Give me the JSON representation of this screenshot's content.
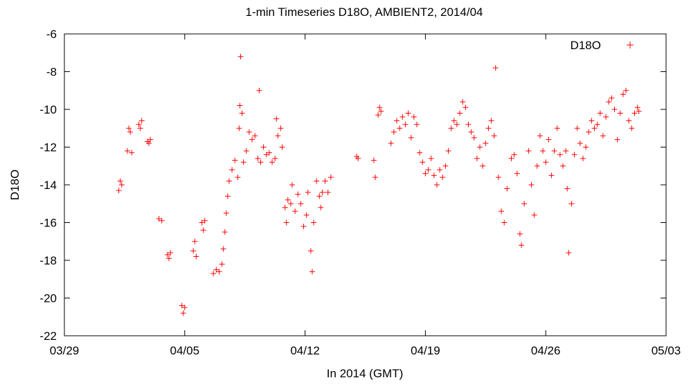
{
  "chart_data": {
    "type": "scatter",
    "title": "1-min Timeseries D18O, AMBIENT2, 2014/04",
    "xlabel": "In 2014 (GMT)",
    "ylabel": "D18O",
    "x_range": [
      "2014-03-29",
      "2014-05-03"
    ],
    "y_range": [
      -22,
      -6
    ],
    "x_ticks": [
      "03/29",
      "04/05",
      "04/12",
      "04/19",
      "04/26",
      "05/03"
    ],
    "y_ticks": [
      "-6",
      "-8",
      "-10",
      "-12",
      "-14",
      "-16",
      "-18",
      "-20",
      "-22"
    ],
    "grid": false,
    "legend_position": "top-right",
    "marker": "+",
    "color": "#ff0000",
    "series": [
      {
        "name": "D18O",
        "points": [
          [
            "2014-04-01T04:00",
            -14.3
          ],
          [
            "2014-04-01T06:00",
            -13.8
          ],
          [
            "2014-04-01T08:00",
            -14.0
          ],
          [
            "2014-04-01T16:00",
            -12.2
          ],
          [
            "2014-04-01T18:00",
            -11.0
          ],
          [
            "2014-04-01T20:00",
            -11.2
          ],
          [
            "2014-04-01T22:00",
            -12.3
          ],
          [
            "2014-04-02T08:00",
            -10.8
          ],
          [
            "2014-04-02T10:00",
            -11.0
          ],
          [
            "2014-04-02T12:00",
            -10.6
          ],
          [
            "2014-04-02T20:00",
            -11.7
          ],
          [
            "2014-04-02T22:00",
            -11.8
          ],
          [
            "2014-04-03T00:00",
            -11.6
          ],
          [
            "2014-04-03T12:00",
            -15.8
          ],
          [
            "2014-04-03T16:00",
            -15.9
          ],
          [
            "2014-04-04T00:00",
            -17.7
          ],
          [
            "2014-04-04T02:00",
            -17.9
          ],
          [
            "2014-04-04T04:00",
            -17.6
          ],
          [
            "2014-04-04T20:00",
            -20.4
          ],
          [
            "2014-04-04T22:00",
            -20.8
          ],
          [
            "2014-04-05T00:00",
            -20.5
          ],
          [
            "2014-04-05T12:00",
            -17.5
          ],
          [
            "2014-04-05T14:00",
            -17.0
          ],
          [
            "2014-04-05T16:00",
            -17.8
          ],
          [
            "2014-04-06T00:00",
            -16.0
          ],
          [
            "2014-04-06T02:00",
            -16.4
          ],
          [
            "2014-04-06T04:00",
            -15.9
          ],
          [
            "2014-04-06T16:00",
            -18.7
          ],
          [
            "2014-04-06T20:00",
            -18.5
          ],
          [
            "2014-04-07T00:00",
            -18.6
          ],
          [
            "2014-04-07T04:00",
            -18.2
          ],
          [
            "2014-04-07T06:00",
            -17.4
          ],
          [
            "2014-04-07T08:00",
            -16.5
          ],
          [
            "2014-04-07T10:00",
            -15.5
          ],
          [
            "2014-04-07T12:00",
            -14.6
          ],
          [
            "2014-04-07T14:00",
            -13.8
          ],
          [
            "2014-04-07T18:00",
            -13.2
          ],
          [
            "2014-04-07T22:00",
            -12.7
          ],
          [
            "2014-04-08T02:00",
            -13.6
          ],
          [
            "2014-04-08T04:00",
            -11.0
          ],
          [
            "2014-04-08T05:00",
            -9.8
          ],
          [
            "2014-04-08T06:00",
            -7.2
          ],
          [
            "2014-04-08T08:00",
            -10.2
          ],
          [
            "2014-04-08T10:00",
            -12.8
          ],
          [
            "2014-04-08T14:00",
            -12.2
          ],
          [
            "2014-04-08T18:00",
            -11.2
          ],
          [
            "2014-04-08T22:00",
            -11.6
          ],
          [
            "2014-04-09T02:00",
            -11.4
          ],
          [
            "2014-04-09T06:00",
            -12.6
          ],
          [
            "2014-04-09T08:00",
            -9.0
          ],
          [
            "2014-04-09T10:00",
            -12.8
          ],
          [
            "2014-04-09T14:00",
            -12.0
          ],
          [
            "2014-04-09T18:00",
            -12.4
          ],
          [
            "2014-04-09T22:00",
            -12.3
          ],
          [
            "2014-04-10T02:00",
            -12.8
          ],
          [
            "2014-04-10T06:00",
            -12.6
          ],
          [
            "2014-04-10T08:00",
            -10.5
          ],
          [
            "2014-04-10T10:00",
            -11.4
          ],
          [
            "2014-04-10T14:00",
            -11.0
          ],
          [
            "2014-04-10T16:00",
            -12.0
          ],
          [
            "2014-04-10T20:00",
            -15.2
          ],
          [
            "2014-04-10T22:00",
            -16.0
          ],
          [
            "2014-04-11T00:00",
            -14.8
          ],
          [
            "2014-04-11T04:00",
            -15.0
          ],
          [
            "2014-04-11T06:00",
            -14.0
          ],
          [
            "2014-04-11T10:00",
            -15.4
          ],
          [
            "2014-04-11T14:00",
            -14.5
          ],
          [
            "2014-04-11T18:00",
            -15.0
          ],
          [
            "2014-04-11T22:00",
            -16.2
          ],
          [
            "2014-04-12T02:00",
            -15.6
          ],
          [
            "2014-04-12T04:00",
            -14.4
          ],
          [
            "2014-04-12T08:00",
            -17.5
          ],
          [
            "2014-04-12T10:00",
            -18.6
          ],
          [
            "2014-04-12T12:00",
            -16.0
          ],
          [
            "2014-04-12T16:00",
            -13.8
          ],
          [
            "2014-04-12T20:00",
            -14.6
          ],
          [
            "2014-04-12T22:00",
            -15.2
          ],
          [
            "2014-04-13T00:00",
            -14.4
          ],
          [
            "2014-04-13T04:00",
            -13.8
          ],
          [
            "2014-04-13T08:00",
            -14.4
          ],
          [
            "2014-04-13T12:00",
            -13.6
          ],
          [
            "2014-04-15T00:00",
            -12.5
          ],
          [
            "2014-04-15T02:00",
            -12.6
          ],
          [
            "2014-04-16T00:00",
            -12.7
          ],
          [
            "2014-04-16T02:00",
            -13.6
          ],
          [
            "2014-04-16T06:00",
            -10.3
          ],
          [
            "2014-04-16T08:00",
            -9.9
          ],
          [
            "2014-04-16T10:00",
            -10.1
          ],
          [
            "2014-04-17T00:00",
            -11.8
          ],
          [
            "2014-04-17T04:00",
            -11.2
          ],
          [
            "2014-04-17T08:00",
            -10.6
          ],
          [
            "2014-04-17T12:00",
            -11.0
          ],
          [
            "2014-04-17T16:00",
            -10.4
          ],
          [
            "2014-04-17T20:00",
            -10.8
          ],
          [
            "2014-04-18T00:00",
            -10.2
          ],
          [
            "2014-04-18T04:00",
            -11.5
          ],
          [
            "2014-04-18T08:00",
            -10.4
          ],
          [
            "2014-04-18T12:00",
            -10.8
          ],
          [
            "2014-04-18T16:00",
            -12.3
          ],
          [
            "2014-04-18T20:00",
            -12.8
          ],
          [
            "2014-04-19T00:00",
            -13.4
          ],
          [
            "2014-04-19T04:00",
            -13.2
          ],
          [
            "2014-04-19T08:00",
            -12.6
          ],
          [
            "2014-04-19T12:00",
            -13.5
          ],
          [
            "2014-04-19T16:00",
            -14.0
          ],
          [
            "2014-04-19T20:00",
            -13.2
          ],
          [
            "2014-04-20T00:00",
            -13.6
          ],
          [
            "2014-04-20T04:00",
            -13.0
          ],
          [
            "2014-04-20T08:00",
            -12.2
          ],
          [
            "2014-04-20T12:00",
            -11.0
          ],
          [
            "2014-04-20T16:00",
            -10.6
          ],
          [
            "2014-04-20T20:00",
            -10.8
          ],
          [
            "2014-04-21T00:00",
            -10.2
          ],
          [
            "2014-04-21T04:00",
            -9.6
          ],
          [
            "2014-04-21T08:00",
            -9.9
          ],
          [
            "2014-04-21T12:00",
            -10.8
          ],
          [
            "2014-04-21T16:00",
            -11.2
          ],
          [
            "2014-04-21T20:00",
            -11.5
          ],
          [
            "2014-04-22T00:00",
            -12.6
          ],
          [
            "2014-04-22T04:00",
            -12.0
          ],
          [
            "2014-04-22T08:00",
            -13.0
          ],
          [
            "2014-04-22T12:00",
            -11.8
          ],
          [
            "2014-04-22T16:00",
            -11.0
          ],
          [
            "2014-04-22T20:00",
            -10.6
          ],
          [
            "2014-04-23T00:00",
            -11.4
          ],
          [
            "2014-04-23T02:00",
            -7.8
          ],
          [
            "2014-04-23T06:00",
            -13.6
          ],
          [
            "2014-04-23T10:00",
            -15.4
          ],
          [
            "2014-04-23T14:00",
            -16.0
          ],
          [
            "2014-04-23T18:00",
            -14.2
          ],
          [
            "2014-04-24T00:00",
            -12.6
          ],
          [
            "2014-04-24T04:00",
            -12.4
          ],
          [
            "2014-04-24T08:00",
            -13.4
          ],
          [
            "2014-04-24T12:00",
            -16.6
          ],
          [
            "2014-04-24T14:00",
            -17.2
          ],
          [
            "2014-04-24T18:00",
            -15.0
          ],
          [
            "2014-04-25T00:00",
            -12.2
          ],
          [
            "2014-04-25T04:00",
            -14.0
          ],
          [
            "2014-04-25T08:00",
            -15.6
          ],
          [
            "2014-04-25T12:00",
            -13.0
          ],
          [
            "2014-04-25T16:00",
            -11.4
          ],
          [
            "2014-04-25T20:00",
            -12.2
          ],
          [
            "2014-04-26T00:00",
            -12.8
          ],
          [
            "2014-04-26T04:00",
            -11.6
          ],
          [
            "2014-04-26T08:00",
            -13.5
          ],
          [
            "2014-04-26T12:00",
            -12.2
          ],
          [
            "2014-04-26T16:00",
            -11.0
          ],
          [
            "2014-04-26T20:00",
            -12.4
          ],
          [
            "2014-04-27T00:00",
            -13.0
          ],
          [
            "2014-04-27T04:00",
            -12.2
          ],
          [
            "2014-04-27T06:00",
            -14.2
          ],
          [
            "2014-04-27T08:00",
            -17.6
          ],
          [
            "2014-04-27T12:00",
            -15.0
          ],
          [
            "2014-04-27T16:00",
            -12.4
          ],
          [
            "2014-04-27T20:00",
            -11.0
          ],
          [
            "2014-04-28T00:00",
            -11.8
          ],
          [
            "2014-04-28T04:00",
            -12.6
          ],
          [
            "2014-04-28T08:00",
            -12.0
          ],
          [
            "2014-04-28T12:00",
            -11.2
          ],
          [
            "2014-04-28T16:00",
            -10.6
          ],
          [
            "2014-04-28T20:00",
            -11.0
          ],
          [
            "2014-04-29T00:00",
            -10.8
          ],
          [
            "2014-04-29T04:00",
            -10.2
          ],
          [
            "2014-04-29T08:00",
            -11.4
          ],
          [
            "2014-04-29T12:00",
            -10.4
          ],
          [
            "2014-04-29T16:00",
            -9.6
          ],
          [
            "2014-04-29T20:00",
            -9.4
          ],
          [
            "2014-04-30T00:00",
            -10.0
          ],
          [
            "2014-04-30T04:00",
            -11.6
          ],
          [
            "2014-04-30T08:00",
            -10.2
          ],
          [
            "2014-04-30T12:00",
            -9.2
          ],
          [
            "2014-04-30T16:00",
            -9.0
          ],
          [
            "2014-04-30T20:00",
            -10.6
          ],
          [
            "2014-05-01T00:00",
            -11.0
          ],
          [
            "2014-05-01T04:00",
            -10.2
          ],
          [
            "2014-05-01T08:00",
            -9.9
          ],
          [
            "2014-05-01T10:00",
            -10.1
          ]
        ]
      }
    ]
  }
}
